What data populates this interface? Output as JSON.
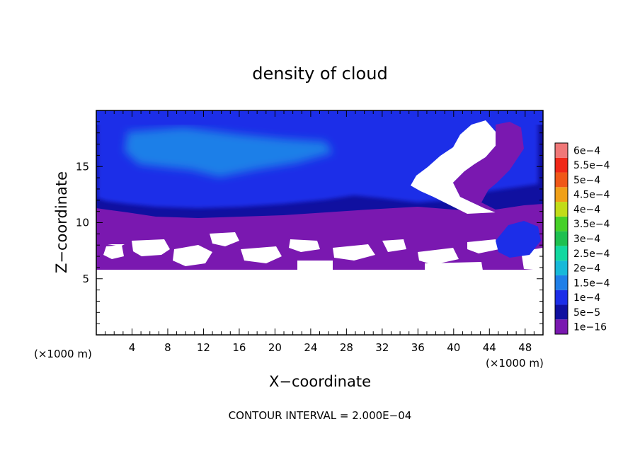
{
  "chart_data": {
    "type": "heatmap",
    "title": "density of cloud",
    "xlabel": "X−coordinate",
    "ylabel": "Z−coordinate",
    "x_unit": "(×1000 m)",
    "y_unit": "(×1000 m)",
    "xlim": [
      0,
      50
    ],
    "ylim": [
      0,
      20
    ],
    "x_ticks": [
      4,
      8,
      12,
      16,
      20,
      24,
      28,
      32,
      36,
      40,
      44,
      48
    ],
    "y_ticks": [
      5,
      10,
      15
    ],
    "x_tick_labels": [
      "4",
      "8",
      "12",
      "16",
      "20",
      "24",
      "28",
      "32",
      "36",
      "40",
      "44",
      "48"
    ],
    "y_tick_labels": [
      "5",
      "10",
      "15"
    ],
    "grid": false,
    "colorbar": {
      "levels": [
        1e-16,
        5e-05,
        0.0001,
        0.00015,
        0.0002,
        0.00025,
        0.0003,
        0.00035,
        0.0004,
        0.00045,
        0.0005,
        0.00055,
        0.0006
      ],
      "labels": [
        "1e−16",
        "5e−5",
        "1e−4",
        "1.5e−4",
        "2e−4",
        "2.5e−4",
        "3e−4",
        "3.5e−4",
        "4e−4",
        "4.5e−4",
        "5e−4",
        "5.5e−4",
        "6e−4"
      ],
      "colors": [
        "#7a18b0",
        "#1010a0",
        "#1c2ee8",
        "#1f7fe8",
        "#17b9d9",
        "#12d8a0",
        "#1ec050",
        "#46d028",
        "#c2dc18",
        "#f0a018",
        "#f05818",
        "#f02818",
        "#f07878"
      ],
      "placement": "right"
    },
    "contour_interval_text": "CONTOUR INTERVAL = 2.000E−04",
    "field_description": "cloud-free below z≈6; cloud-base layer (~1e-16) from z≈6 to 11 with clear gaps; main cloud (5e-5 to 1.5e-4) from z≈11 to 19.5; clear region at x≈32–43 near z≈11–19"
  }
}
